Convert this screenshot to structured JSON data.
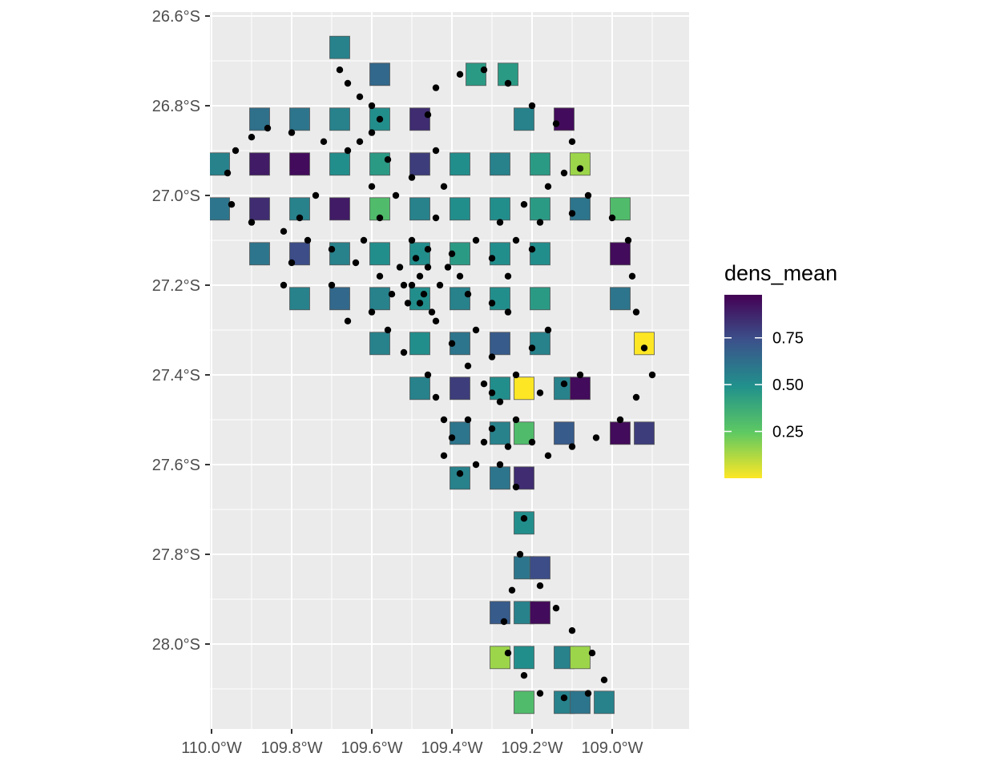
{
  "chart_data": {
    "type": "heatmap",
    "title": "",
    "xlabel": "",
    "ylabel": "",
    "x_ticks": [
      -110.0,
      -109.8,
      -109.6,
      -109.4,
      -109.2,
      -109.0
    ],
    "x_tick_labels": [
      "110.0°W",
      "109.8°W",
      "109.6°W",
      "109.4°W",
      "109.2°W",
      "109.0°W"
    ],
    "y_ticks": [
      -26.6,
      -26.8,
      -27.0,
      -27.2,
      -27.4,
      -27.6,
      -27.8,
      -28.0
    ],
    "y_tick_labels": [
      "26.6°S",
      "26.8°S",
      "27.0°S",
      "27.2°S",
      "27.4°S",
      "27.6°S",
      "27.8°S",
      "28.0°S"
    ],
    "xlim": [
      -110.01,
      -109.61
    ],
    "ylim": [
      -28.17,
      -26.58
    ],
    "grid": true,
    "cell_size_deg": 0.1,
    "legend": {
      "title": "dens_mean",
      "placement": "right",
      "colormap": "viridis (reversed)",
      "range": [
        0.0,
        0.98
      ],
      "tick_values": [
        0.25,
        0.5,
        0.75
      ],
      "tick_labels": [
        "0.25",
        "0.50",
        "0.75"
      ]
    },
    "cells": [
      [
        -109.68,
        -26.67,
        0.55
      ],
      [
        -109.58,
        -26.73,
        0.65
      ],
      [
        -109.34,
        -26.73,
        0.45
      ],
      [
        -109.26,
        -26.73,
        0.45
      ],
      [
        -109.88,
        -26.83,
        0.62
      ],
      [
        -109.78,
        -26.83,
        0.6
      ],
      [
        -109.68,
        -26.83,
        0.55
      ],
      [
        -109.58,
        -26.83,
        0.5
      ],
      [
        -109.48,
        -26.83,
        0.85
      ],
      [
        -109.22,
        -26.83,
        0.55
      ],
      [
        -109.12,
        -26.83,
        0.95
      ],
      [
        -109.98,
        -26.93,
        0.55
      ],
      [
        -109.88,
        -26.93,
        0.9
      ],
      [
        -109.78,
        -26.93,
        0.95
      ],
      [
        -109.68,
        -26.93,
        0.5
      ],
      [
        -109.58,
        -26.93,
        0.45
      ],
      [
        -109.48,
        -26.93,
        0.8
      ],
      [
        -109.38,
        -26.93,
        0.5
      ],
      [
        -109.28,
        -26.93,
        0.55
      ],
      [
        -109.18,
        -26.93,
        0.45
      ],
      [
        -109.08,
        -26.93,
        0.15
      ],
      [
        -109.98,
        -27.03,
        0.6
      ],
      [
        -109.88,
        -27.03,
        0.85
      ],
      [
        -109.78,
        -27.03,
        0.55
      ],
      [
        -109.68,
        -27.03,
        0.9
      ],
      [
        -109.58,
        -27.03,
        0.3
      ],
      [
        -109.48,
        -27.03,
        0.55
      ],
      [
        -109.38,
        -27.03,
        0.5
      ],
      [
        -109.28,
        -27.03,
        0.5
      ],
      [
        -109.18,
        -27.03,
        0.45
      ],
      [
        -109.08,
        -27.03,
        0.6
      ],
      [
        -108.98,
        -27.03,
        0.3
      ],
      [
        -109.88,
        -27.13,
        0.6
      ],
      [
        -109.78,
        -27.13,
        0.75
      ],
      [
        -109.68,
        -27.13,
        0.55
      ],
      [
        -109.58,
        -27.13,
        0.5
      ],
      [
        -109.48,
        -27.13,
        0.5
      ],
      [
        -109.38,
        -27.13,
        0.45
      ],
      [
        -109.28,
        -27.13,
        0.5
      ],
      [
        -109.18,
        -27.13,
        0.5
      ],
      [
        -108.98,
        -27.13,
        0.95
      ],
      [
        -109.78,
        -27.23,
        0.55
      ],
      [
        -109.68,
        -27.23,
        0.65
      ],
      [
        -109.58,
        -27.23,
        0.55
      ],
      [
        -109.48,
        -27.23,
        0.5
      ],
      [
        -109.38,
        -27.23,
        0.55
      ],
      [
        -109.28,
        -27.23,
        0.5
      ],
      [
        -109.18,
        -27.23,
        0.45
      ],
      [
        -108.98,
        -27.23,
        0.6
      ],
      [
        -109.58,
        -27.33,
        0.55
      ],
      [
        -109.48,
        -27.33,
        0.5
      ],
      [
        -109.38,
        -27.33,
        0.6
      ],
      [
        -109.28,
        -27.33,
        0.7
      ],
      [
        -109.18,
        -27.33,
        0.55
      ],
      [
        -108.92,
        -27.33,
        0.0
      ],
      [
        -109.48,
        -27.43,
        0.55
      ],
      [
        -109.38,
        -27.43,
        0.8
      ],
      [
        -109.28,
        -27.43,
        0.5
      ],
      [
        -109.22,
        -27.43,
        0.0
      ],
      [
        -109.12,
        -27.43,
        0.55
      ],
      [
        -109.08,
        -27.43,
        0.95
      ],
      [
        -109.38,
        -27.53,
        0.6
      ],
      [
        -109.28,
        -27.53,
        0.55
      ],
      [
        -109.22,
        -27.53,
        0.3
      ],
      [
        -109.12,
        -27.53,
        0.7
      ],
      [
        -108.98,
        -27.53,
        0.95
      ],
      [
        -108.92,
        -27.53,
        0.8
      ],
      [
        -109.38,
        -27.63,
        0.55
      ],
      [
        -109.28,
        -27.63,
        0.6
      ],
      [
        -109.22,
        -27.63,
        0.85
      ],
      [
        -109.22,
        -27.73,
        0.5
      ],
      [
        -109.22,
        -27.83,
        0.6
      ],
      [
        -109.18,
        -27.83,
        0.75
      ],
      [
        -109.28,
        -27.93,
        0.7
      ],
      [
        -109.22,
        -27.93,
        0.55
      ],
      [
        -109.18,
        -27.93,
        0.95
      ],
      [
        -109.28,
        -28.03,
        0.15
      ],
      [
        -109.22,
        -28.03,
        0.5
      ],
      [
        -109.12,
        -28.03,
        0.55
      ],
      [
        -109.08,
        -28.03,
        0.15
      ],
      [
        -109.22,
        -28.13,
        0.3
      ],
      [
        -109.12,
        -28.13,
        0.55
      ],
      [
        -109.08,
        -28.13,
        0.6
      ],
      [
        -109.02,
        -28.13,
        0.55
      ]
    ],
    "points": [
      [
        -109.68,
        -26.72
      ],
      [
        -109.66,
        -26.75
      ],
      [
        -109.63,
        -26.78
      ],
      [
        -109.6,
        -26.8
      ],
      [
        -109.58,
        -26.83
      ],
      [
        -109.6,
        -26.86
      ],
      [
        -109.63,
        -26.88
      ],
      [
        -109.66,
        -26.9
      ],
      [
        -109.72,
        -26.88
      ],
      [
        -109.8,
        -26.86
      ],
      [
        -109.86,
        -26.85
      ],
      [
        -109.9,
        -26.87
      ],
      [
        -109.94,
        -26.9
      ],
      [
        -109.96,
        -26.95
      ],
      [
        -109.95,
        -27.02
      ],
      [
        -109.9,
        -27.06
      ],
      [
        -109.82,
        -27.08
      ],
      [
        -109.76,
        -27.1
      ],
      [
        -109.7,
        -27.12
      ],
      [
        -109.64,
        -27.15
      ],
      [
        -109.58,
        -27.18
      ],
      [
        -109.52,
        -27.2
      ],
      [
        -109.48,
        -27.18
      ],
      [
        -109.46,
        -27.12
      ],
      [
        -109.44,
        -27.05
      ],
      [
        -109.42,
        -26.98
      ],
      [
        -109.44,
        -26.9
      ],
      [
        -109.46,
        -26.82
      ],
      [
        -109.44,
        -26.76
      ],
      [
        -109.38,
        -26.73
      ],
      [
        -109.32,
        -26.72
      ],
      [
        -109.26,
        -26.75
      ],
      [
        -109.2,
        -26.8
      ],
      [
        -109.14,
        -26.84
      ],
      [
        -109.1,
        -26.88
      ],
      [
        -109.08,
        -26.94
      ],
      [
        -109.06,
        -27.0
      ],
      [
        -109.0,
        -27.05
      ],
      [
        -108.96,
        -27.1
      ],
      [
        -108.95,
        -27.18
      ],
      [
        -108.94,
        -27.26
      ],
      [
        -108.92,
        -27.34
      ],
      [
        -108.9,
        -27.4
      ],
      [
        -108.94,
        -27.45
      ],
      [
        -108.98,
        -27.5
      ],
      [
        -109.04,
        -27.54
      ],
      [
        -109.1,
        -27.56
      ],
      [
        -109.16,
        -27.58
      ],
      [
        -109.2,
        -27.55
      ],
      [
        -109.24,
        -27.5
      ],
      [
        -109.28,
        -27.46
      ],
      [
        -109.32,
        -27.42
      ],
      [
        -109.36,
        -27.38
      ],
      [
        -109.4,
        -27.33
      ],
      [
        -109.44,
        -27.28
      ],
      [
        -109.48,
        -27.24
      ],
      [
        -109.5,
        -27.2
      ],
      [
        -109.46,
        -27.16
      ],
      [
        -109.4,
        -27.13
      ],
      [
        -109.34,
        -27.1
      ],
      [
        -109.28,
        -27.06
      ],
      [
        -109.22,
        -27.02
      ],
      [
        -109.16,
        -26.98
      ],
      [
        -109.12,
        -26.95
      ],
      [
        -109.2,
        -27.12
      ],
      [
        -109.26,
        -27.18
      ],
      [
        -109.3,
        -27.24
      ],
      [
        -109.34,
        -27.3
      ],
      [
        -109.3,
        -27.36
      ],
      [
        -109.24,
        -27.4
      ],
      [
        -109.18,
        -27.44
      ],
      [
        -109.12,
        -27.42
      ],
      [
        -109.08,
        -27.4
      ],
      [
        -109.28,
        -27.6
      ],
      [
        -109.24,
        -27.65
      ],
      [
        -109.22,
        -27.72
      ],
      [
        -109.23,
        -27.8
      ],
      [
        -109.25,
        -27.88
      ],
      [
        -109.27,
        -27.95
      ],
      [
        -109.26,
        -28.02
      ],
      [
        -109.22,
        -28.07
      ],
      [
        -109.18,
        -28.11
      ],
      [
        -109.12,
        -28.12
      ],
      [
        -109.06,
        -28.11
      ],
      [
        -109.02,
        -28.08
      ],
      [
        -109.05,
        -28.02
      ],
      [
        -109.1,
        -27.97
      ],
      [
        -109.14,
        -27.92
      ],
      [
        -109.18,
        -27.87
      ],
      [
        -109.38,
        -27.62
      ],
      [
        -109.34,
        -27.6
      ],
      [
        -109.32,
        -27.55
      ],
      [
        -109.42,
        -27.5
      ],
      [
        -109.44,
        -27.45
      ],
      [
        -109.46,
        -27.4
      ],
      [
        -109.52,
        -27.35
      ],
      [
        -109.56,
        -27.3
      ],
      [
        -109.6,
        -27.26
      ],
      [
        -109.62,
        -27.1
      ],
      [
        -109.58,
        -27.05
      ],
      [
        -109.54,
        -27.0
      ],
      [
        -109.5,
        -26.96
      ],
      [
        -109.56,
        -26.92
      ],
      [
        -109.6,
        -26.98
      ],
      [
        -109.74,
        -27.0
      ],
      [
        -109.78,
        -27.05
      ],
      [
        -109.8,
        -27.15
      ],
      [
        -109.82,
        -27.2
      ],
      [
        -109.7,
        -27.2
      ],
      [
        -109.66,
        -27.28
      ],
      [
        -109.5,
        -27.1
      ],
      [
        -109.47,
        -27.22
      ],
      [
        -109.45,
        -27.26
      ],
      [
        -109.53,
        -27.16
      ],
      [
        -109.49,
        -27.14
      ],
      [
        -109.51,
        -27.24
      ],
      [
        -109.43,
        -27.2
      ],
      [
        -109.41,
        -27.16
      ],
      [
        -109.55,
        -27.22
      ],
      [
        -109.36,
        -27.22
      ],
      [
        -109.38,
        -27.18
      ],
      [
        -109.3,
        -27.14
      ],
      [
        -109.24,
        -27.1
      ],
      [
        -109.18,
        -27.06
      ],
      [
        -109.1,
        -27.04
      ],
      [
        -109.16,
        -27.3
      ],
      [
        -109.2,
        -27.34
      ],
      [
        -109.26,
        -27.26
      ],
      [
        -109.3,
        -27.44
      ],
      [
        -109.36,
        -27.5
      ],
      [
        -109.3,
        -27.52
      ],
      [
        -109.26,
        -27.56
      ],
      [
        -109.42,
        -27.58
      ],
      [
        -109.4,
        -27.54
      ]
    ]
  }
}
